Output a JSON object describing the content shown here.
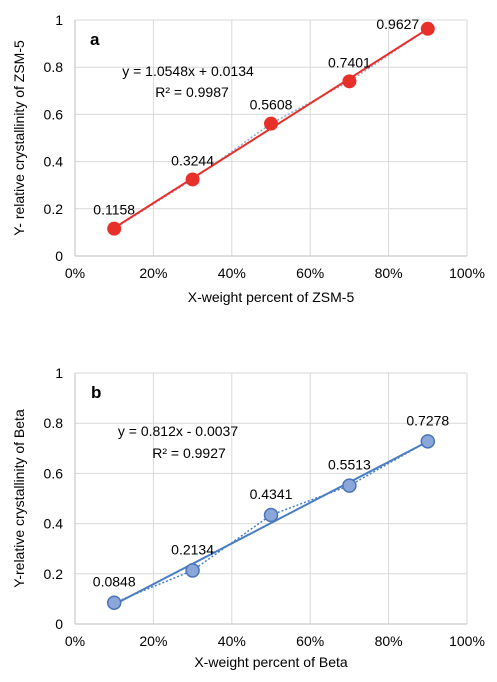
{
  "chart_data": [
    {
      "type": "scatter",
      "panel_label": "a",
      "xlabel": "X-weight percent of ZSM-5",
      "ylabel": "Y- relative crystallinity of ZSM-5",
      "x": [
        10,
        30,
        50,
        70,
        90
      ],
      "y": [
        0.1158,
        0.3244,
        0.5608,
        0.7401,
        0.9627
      ],
      "point_labels": [
        "0.1158",
        "0.3244",
        "0.5608",
        "0.7401",
        "0.9627"
      ],
      "xlim": [
        0,
        100
      ],
      "ylim": [
        0,
        1
      ],
      "xticks": [
        0,
        20,
        40,
        60,
        80,
        100
      ],
      "xtick_labels": [
        "0%",
        "20%",
        "40%",
        "60%",
        "80%",
        "100%"
      ],
      "yticks": [
        0,
        0.2,
        0.4,
        0.6,
        0.8,
        1
      ],
      "ytick_labels": [
        "0",
        "0.2",
        "0.4",
        "0.6",
        "0.8",
        "1"
      ],
      "trendline": {
        "slope": 1.0548,
        "intercept": 0.0134
      },
      "equation": "y = 1.0548x + 0.0134",
      "r_squared": "R² = 0.9987",
      "grid": true,
      "colors": {
        "marker": "#e8302a",
        "line": "#e8302a",
        "dotted": "#8fa9d6"
      }
    },
    {
      "type": "scatter",
      "panel_label": "b",
      "xlabel": "X-weight percent of Beta",
      "ylabel": "Y-relative crystallinity of Beta",
      "x": [
        10,
        30,
        50,
        70,
        90
      ],
      "y": [
        0.0848,
        0.2134,
        0.4341,
        0.5513,
        0.7278
      ],
      "point_labels": [
        "0.0848",
        "0.2134",
        "0.4341",
        "0.5513",
        "0.7278"
      ],
      "xlim": [
        0,
        100
      ],
      "ylim": [
        0,
        1
      ],
      "xticks": [
        0,
        20,
        40,
        60,
        80,
        100
      ],
      "xtick_labels": [
        "0%",
        "20%",
        "40%",
        "60%",
        "80%",
        "100%"
      ],
      "yticks": [
        0,
        0.2,
        0.4,
        0.6,
        0.8,
        1
      ],
      "ytick_labels": [
        "0",
        "0.2",
        "0.4",
        "0.6",
        "0.8",
        "1"
      ],
      "trendline": {
        "slope": 0.812,
        "intercept": -0.0037
      },
      "equation": "y = 0.812x - 0.0037",
      "r_squared": "R² = 0.9927",
      "grid": true,
      "colors": {
        "marker": "#8ba6d8",
        "marker_edge": "#4a74b8",
        "line": "#4a7ec4",
        "dotted": "#4a7ec4"
      }
    }
  ]
}
